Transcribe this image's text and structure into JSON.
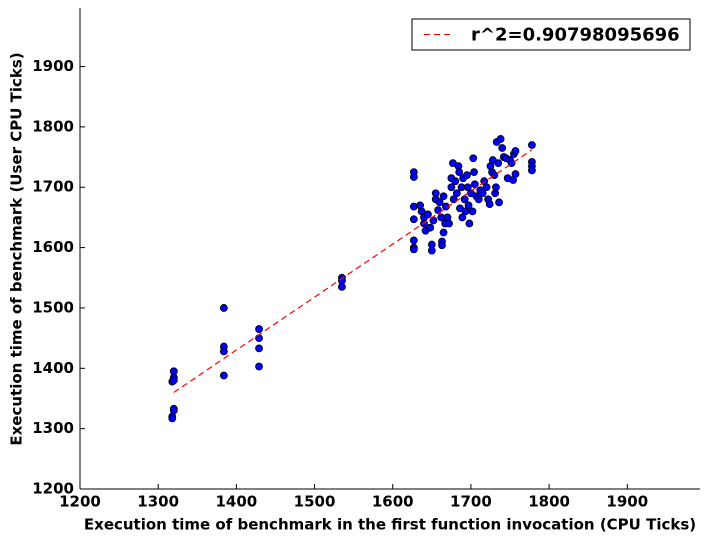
{
  "chart_data": {
    "type": "scatter",
    "x_label": "Execution time of benchmark in the first function invocation (CPU Ticks)",
    "y_label": "Execution time of benchmark (User CPU Ticks)",
    "xlim": [
      1200,
      1993
    ],
    "ylim": [
      1200,
      1997
    ],
    "xticks": [
      1200,
      1300,
      1400,
      1500,
      1600,
      1700,
      1800,
      1900
    ],
    "yticks": [
      1200,
      1300,
      1400,
      1500,
      1600,
      1700,
      1800,
      1900
    ],
    "legend": "upper right",
    "series": [
      {
        "color": "#0000ff",
        "x": [
          1320,
          1320,
          1318,
          1320,
          1320,
          1320,
          1318,
          1318,
          1384,
          1384,
          1384,
          1384,
          1429,
          1429,
          1429,
          1429,
          1535,
          1535,
          1535,
          1627,
          1627,
          1627,
          1627,
          1627,
          1627,
          1627,
          1635,
          1637,
          1640,
          1640,
          1642,
          1645,
          1648,
          1650,
          1650,
          1652,
          1655,
          1655,
          1658,
          1660,
          1662,
          1663,
          1663,
          1665,
          1665,
          1667,
          1668,
          1670,
          1672,
          1675,
          1675,
          1677,
          1678,
          1680,
          1682,
          1684,
          1685,
          1686,
          1688,
          1689,
          1690,
          1692,
          1693,
          1695,
          1696,
          1697,
          1698,
          1700,
          1702,
          1703,
          1704,
          1705,
          1707,
          1710,
          1712,
          1715,
          1717,
          1720,
          1722,
          1724,
          1725,
          1727,
          1728,
          1730,
          1731,
          1732,
          1733,
          1735,
          1736,
          1738,
          1740,
          1742,
          1745,
          1747,
          1750,
          1752,
          1754,
          1755,
          1757,
          1757,
          1778,
          1778,
          1778,
          1778
        ],
        "values": [
          1395,
          1385,
          1378,
          1380,
          1333,
          1330,
          1320,
          1317,
          1500,
          1436,
          1428,
          1388,
          1465,
          1450,
          1433,
          1403,
          1550,
          1545,
          1535,
          1725,
          1717,
          1668,
          1647,
          1612,
          1600,
          1597,
          1670,
          1660,
          1650,
          1640,
          1628,
          1655,
          1633,
          1605,
          1595,
          1645,
          1690,
          1680,
          1662,
          1675,
          1650,
          1610,
          1604,
          1685,
          1625,
          1640,
          1668,
          1650,
          1640,
          1700,
          1715,
          1740,
          1680,
          1710,
          1690,
          1735,
          1725,
          1665,
          1700,
          1650,
          1715,
          1680,
          1660,
          1720,
          1700,
          1670,
          1640,
          1690,
          1660,
          1748,
          1725,
          1705,
          1685,
          1680,
          1695,
          1690,
          1710,
          1700,
          1680,
          1672,
          1735,
          1725,
          1745,
          1720,
          1690,
          1700,
          1775,
          1740,
          1675,
          1780,
          1765,
          1750,
          1748,
          1715,
          1745,
          1740,
          1712,
          1755,
          1722,
          1760,
          1770,
          1742,
          1735,
          1728
        ]
      },
      {
        "type": "line",
        "name": "r^2=0.90798095696",
        "color": "#ff0000",
        "dashed": true,
        "x": [
          1320,
          1778
        ],
        "values": [
          1360,
          1762
        ]
      }
    ]
  }
}
